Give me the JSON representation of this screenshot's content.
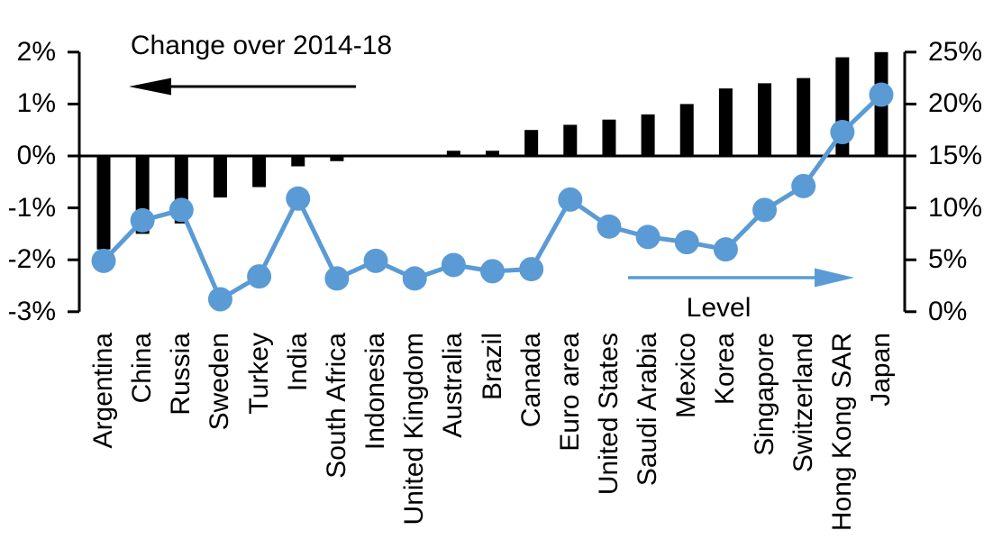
{
  "page": {
    "background": "#ffffff"
  },
  "chart_data": {
    "type": "combo",
    "subtypes": [
      "bar",
      "line"
    ],
    "title": "",
    "categories": [
      "Argentina",
      "China",
      "Russia",
      "Sweden",
      "Turkey",
      "India",
      "South Africa",
      "Indonesia",
      "United Kingdom",
      "Australia",
      "Brazil",
      "Canada",
      "Euro area",
      "United States",
      "Saudi Arabia",
      "Mexico",
      "Korea",
      "Singapore",
      "Switzerland",
      "Hong Kong SAR",
      "Japan"
    ],
    "series": [
      {
        "name": "Change over 2014-18",
        "type": "bar",
        "axis": "left",
        "color": "#000000",
        "values": [
          -1.8,
          -1.5,
          -1.3,
          -0.8,
          -0.6,
          -0.2,
          -0.1,
          0,
          0,
          0.1,
          0.1,
          0.5,
          0.6,
          0.7,
          0.8,
          1.0,
          1.3,
          1.4,
          1.5,
          1.9,
          2.0
        ]
      },
      {
        "name": "Level",
        "type": "line",
        "axis": "right",
        "color": "#5B9BD5",
        "values": [
          4.9,
          8.8,
          9.8,
          1.2,
          3.4,
          10.9,
          3.2,
          4.9,
          3.2,
          4.5,
          3.9,
          4.1,
          10.8,
          8.2,
          7.2,
          6.7,
          6.0,
          9.8,
          12.1,
          17.3,
          20.9
        ]
      }
    ],
    "left_axis": {
      "tick_labels": [
        "2%",
        "1%",
        "0%",
        "-1%",
        "-2%",
        "-3%"
      ],
      "tick_values": [
        2,
        1,
        0,
        -1,
        -2,
        -3
      ],
      "min": -3,
      "max": 2
    },
    "right_axis": {
      "tick_labels": [
        "25%",
        "20%",
        "15%",
        "10%",
        "5%",
        "0%"
      ],
      "tick_values": [
        25,
        20,
        15,
        10,
        5,
        0
      ],
      "min": 0,
      "max": 25
    },
    "annotations": {
      "bar_series_label": "Change over 2014-18",
      "line_series_label": "Level",
      "bar_arrow_direction": "left",
      "line_arrow_direction": "right"
    },
    "grid": false,
    "legend_position": "in-plot text annotations with arrows",
    "colors": {
      "bar": "#000000",
      "line": "#5B9BD5",
      "text": "#000000",
      "background": "#ffffff"
    }
  }
}
